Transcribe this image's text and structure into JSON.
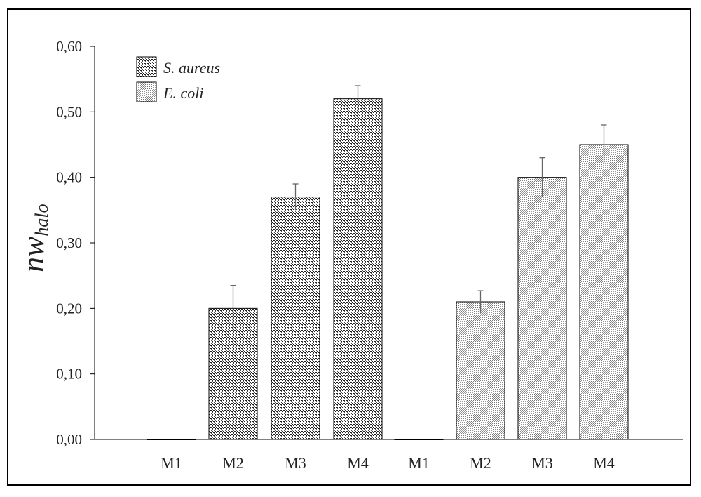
{
  "chart_data": {
    "type": "bar",
    "title": "",
    "xlabel": "",
    "ylabel": "nw",
    "ylabel_sub": "halo",
    "ylim": [
      0,
      0.6
    ],
    "yticks": [
      "0,00",
      "0,10",
      "0,20",
      "0,30",
      "0,40",
      "0,50",
      "0,60"
    ],
    "grid": false,
    "legend_position": "top-left",
    "series": [
      {
        "name": "S. aureus",
        "categories": [
          "M1",
          "M2",
          "M3",
          "M4"
        ],
        "values": [
          0,
          0.2,
          0.37,
          0.52
        ],
        "errors": [
          0,
          0.035,
          0.02,
          0.02
        ],
        "fill": "#3a3a3a"
      },
      {
        "name": "E. coli",
        "categories": [
          "M1",
          "M2",
          "M3",
          "M4"
        ],
        "values": [
          0,
          0.21,
          0.4,
          0.45
        ],
        "errors": [
          0,
          0.017,
          0.03,
          0.03
        ],
        "fill": "#8a8a8a"
      }
    ]
  }
}
